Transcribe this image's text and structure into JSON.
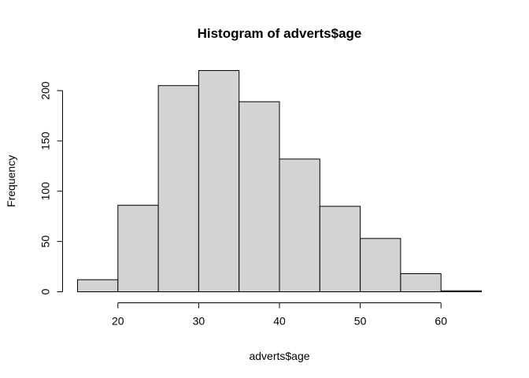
{
  "chart_data": {
    "type": "bar",
    "title": "Histogram of adverts$age",
    "xlabel": "adverts$age",
    "ylabel": "Frequency",
    "bins": [
      {
        "start": 15,
        "end": 20,
        "count": 12
      },
      {
        "start": 20,
        "end": 25,
        "count": 86
      },
      {
        "start": 25,
        "end": 30,
        "count": 205
      },
      {
        "start": 30,
        "end": 35,
        "count": 220
      },
      {
        "start": 35,
        "end": 40,
        "count": 189
      },
      {
        "start": 40,
        "end": 45,
        "count": 132
      },
      {
        "start": 45,
        "end": 50,
        "count": 85
      },
      {
        "start": 50,
        "end": 55,
        "count": 53
      },
      {
        "start": 55,
        "end": 60,
        "count": 18
      },
      {
        "start": 60,
        "end": 65,
        "count": 1
      }
    ],
    "x_ticks": [
      20,
      30,
      40,
      50,
      60
    ],
    "y_ticks": [
      0,
      50,
      100,
      150,
      200
    ],
    "xlim": [
      15,
      65
    ],
    "ylim": [
      0,
      220
    ],
    "grid": false,
    "bar_color": "#d3d3d3",
    "border_color": "#000000"
  }
}
